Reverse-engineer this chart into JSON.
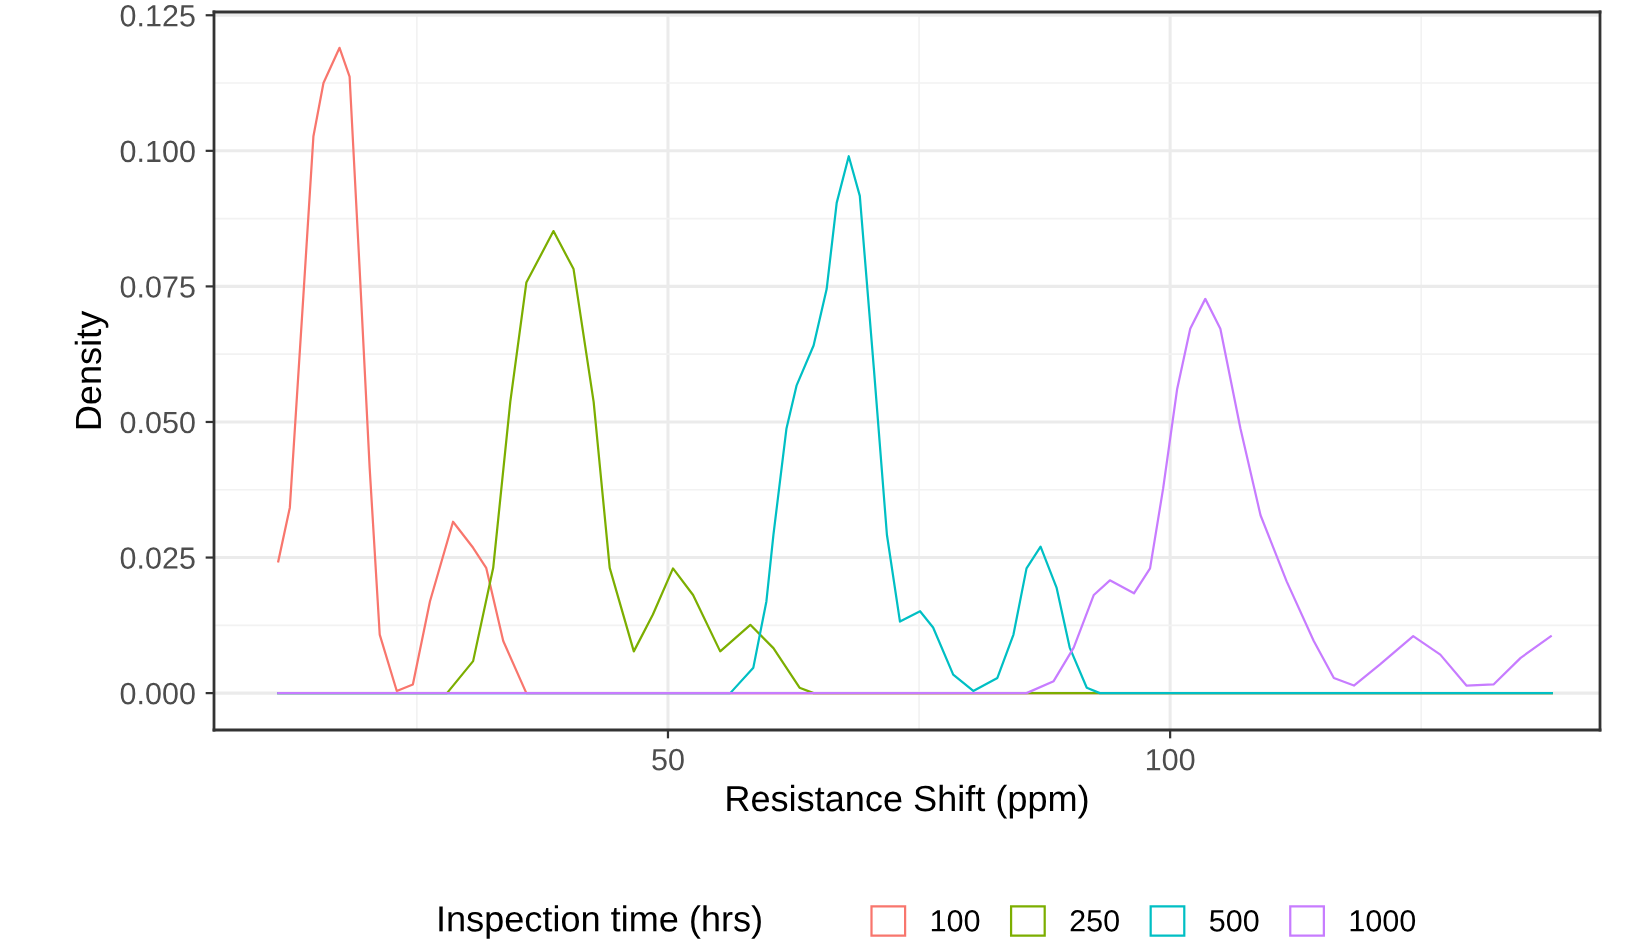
{
  "chart_data": {
    "type": "line",
    "xlabel": "Resistance Shift (ppm)",
    "ylabel": "Density",
    "legend_title": "Inspection time (hrs)",
    "legend": "bottom",
    "grid": true,
    "xlim": [
      4.8,
      142.8
    ],
    "xticks": [
      50,
      100
    ],
    "ylim": [
      -0.0068,
      0.1256
    ],
    "yticks": [
      {
        "value": 0,
        "label": "0.000"
      },
      {
        "value": 0.025,
        "label": "0.025"
      },
      {
        "value": 0.05,
        "label": "0.050"
      },
      {
        "value": 0.075,
        "label": "0.075"
      },
      {
        "value": 0.1,
        "label": "0.100"
      },
      {
        "value": 0.125,
        "label": "0.125"
      }
    ],
    "series": [
      {
        "name": "100",
        "color": "#f8766d",
        "x": [
          11.2,
          12.35,
          13.7,
          14.7,
          15.7,
          17.3,
          18.3,
          19.3,
          20.3,
          21.3,
          23.0,
          24.6,
          26.3,
          28.6,
          30.6,
          31.9,
          33.6,
          35.9,
          138.0
        ],
        "values": [
          0.0243,
          0.0342,
          0.0733,
          0.1027,
          0.1125,
          0.119,
          0.1137,
          0.0782,
          0.0415,
          0.0108,
          0.0004,
          0.0016,
          0.0169,
          0.0316,
          0.0268,
          0.0231,
          0.0096,
          0,
          0
        ]
      },
      {
        "name": "250",
        "color": "#7cae00",
        "x": [
          11.2,
          28.0,
          30.6,
          32.6,
          34.3,
          35.9,
          38.6,
          40.6,
          42.6,
          44.2,
          46.6,
          48.5,
          50.5,
          52.5,
          55.2,
          58.2,
          60.5,
          63.1,
          64.5,
          138.0
        ],
        "values": [
          0,
          0,
          0.0059,
          0.0231,
          0.0537,
          0.0757,
          0.0852,
          0.0782,
          0.0537,
          0.0231,
          0.0077,
          0.0145,
          0.023,
          0.0181,
          0.0077,
          0.0126,
          0.0083,
          0.001,
          0,
          0
        ]
      },
      {
        "name": "500",
        "color": "#00bfc4",
        "x": [
          11.2,
          56.2,
          58.5,
          59.8,
          60.5,
          61.8,
          62.8,
          64.5,
          65.8,
          66.8,
          68.0,
          69.1,
          70.5,
          71.8,
          73.1,
          75.1,
          76.4,
          78.4,
          80.4,
          82.8,
          84.4,
          85.7,
          87.1,
          88.7,
          90.0,
          91.7,
          93.0,
          138.0
        ],
        "values": [
          0,
          0,
          0.0047,
          0.0169,
          0.0292,
          0.0488,
          0.0567,
          0.0641,
          0.0745,
          0.0904,
          0.099,
          0.0917,
          0.0599,
          0.0292,
          0.0132,
          0.0151,
          0.0121,
          0.0034,
          0.0004,
          0.0028,
          0.0108,
          0.023,
          0.027,
          0.0194,
          0.0084,
          0.001,
          0,
          0
        ]
      },
      {
        "name": "1000",
        "color": "#c77cff",
        "x": [
          11.2,
          85.7,
          88.4,
          90.4,
          92.4,
          94.0,
          96.4,
          98.0,
          99.3,
          100.7,
          102.0,
          103.5,
          105.0,
          107.0,
          109.0,
          111.6,
          114.3,
          116.3,
          118.3,
          120.9,
          124.2,
          126.9,
          129.5,
          132.2,
          134.9,
          137.9
        ],
        "values": [
          0,
          0,
          0.0022,
          0.0084,
          0.0181,
          0.0208,
          0.0184,
          0.023,
          0.0377,
          0.0561,
          0.0672,
          0.0727,
          0.0672,
          0.0488,
          0.0328,
          0.0206,
          0.0096,
          0.0028,
          0.0014,
          0.0053,
          0.0105,
          0.0071,
          0.0014,
          0.0016,
          0.0065,
          0.0105
        ]
      }
    ]
  }
}
